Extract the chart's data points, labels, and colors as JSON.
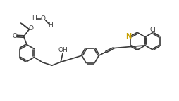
{
  "bg_color": "#ffffff",
  "line_color": "#3a3a3a",
  "lw": 1.2,
  "N_color": "#c8a000",
  "fs": 6.5,
  "figsize": [
    2.54,
    1.44
  ],
  "dpi": 100,
  "xlim": [
    0,
    10.5
  ],
  "ylim": [
    0,
    5.8
  ]
}
